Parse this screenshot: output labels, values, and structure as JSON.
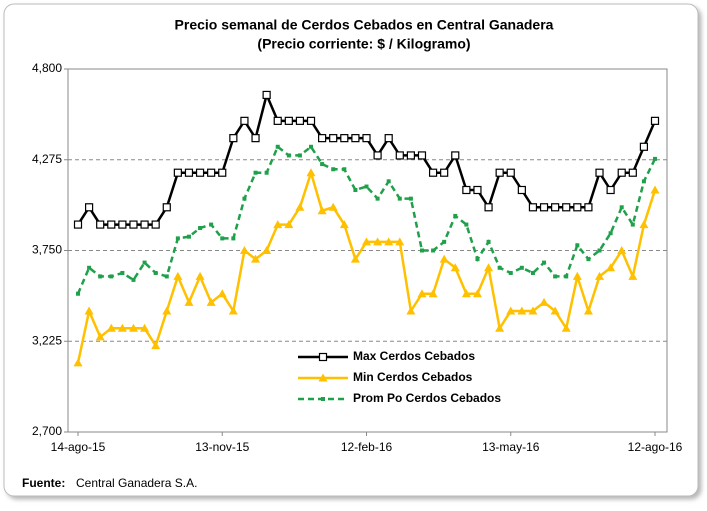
{
  "chart_data": {
    "type": "line",
    "title": "Precio semanal de Cerdos Cebados en Central Ganadera",
    "subtitle": "(Precio corriente: $ / Kilogramo)",
    "categories": [
      "14-ago-15",
      null,
      null,
      null,
      null,
      null,
      null,
      null,
      null,
      null,
      null,
      null,
      null,
      "13-nov-15",
      null,
      null,
      null,
      null,
      null,
      null,
      null,
      null,
      null,
      null,
      null,
      null,
      "12-feb-16",
      null,
      null,
      null,
      null,
      null,
      null,
      null,
      null,
      null,
      null,
      null,
      null,
      "13-may-16",
      null,
      null,
      null,
      null,
      null,
      null,
      null,
      null,
      null,
      null,
      null,
      null,
      "12-ago-16"
    ],
    "series": [
      {
        "name": "Max Cerdos Cebados",
        "color": "#000000",
        "marker": "square-open",
        "values": [
          3900,
          4000,
          3900,
          3900,
          3900,
          3900,
          3900,
          3900,
          4000,
          4200,
          4200,
          4200,
          4200,
          4200,
          4400,
          4500,
          4400,
          4650,
          4500,
          4500,
          4500,
          4500,
          4400,
          4400,
          4400,
          4400,
          4400,
          4300,
          4400,
          4300,
          4300,
          4300,
          4200,
          4200,
          4300,
          4100,
          4100,
          4000,
          4200,
          4200,
          4100,
          4000,
          4000,
          4000,
          4000,
          4000,
          4000,
          4200,
          4100,
          4200,
          4200,
          4350,
          4500
        ]
      },
      {
        "name": "Min Cerdos Cebados",
        "color": "#ffc000",
        "marker": "triangle",
        "values": [
          3100,
          3400,
          3250,
          3300,
          3300,
          3300,
          3300,
          3200,
          3400,
          3600,
          3450,
          3600,
          3450,
          3500,
          3400,
          3750,
          3700,
          3750,
          3900,
          3900,
          4000,
          4200,
          3980,
          4000,
          3900,
          3700,
          3800,
          3800,
          3800,
          3800,
          3400,
          3500,
          3500,
          3700,
          3650,
          3500,
          3500,
          3650,
          3300,
          3400,
          3400,
          3400,
          3450,
          3400,
          3300,
          3600,
          3400,
          3600,
          3650,
          3750,
          3600,
          3900,
          4100
        ]
      },
      {
        "name": "Prom Po Cerdos Cebados",
        "color": "#1fa04a",
        "marker": "small-square",
        "dashed": true,
        "values": [
          3500,
          3650,
          3600,
          3600,
          3620,
          3580,
          3680,
          3620,
          3600,
          3820,
          3830,
          3880,
          3900,
          3820,
          3820,
          4050,
          4200,
          4200,
          4350,
          4300,
          4300,
          4350,
          4250,
          4220,
          4220,
          4100,
          4120,
          4050,
          4150,
          4050,
          4050,
          3750,
          3750,
          3800,
          3950,
          3900,
          3700,
          3800,
          3650,
          3620,
          3650,
          3620,
          3680,
          3600,
          3600,
          3780,
          3700,
          3750,
          3850,
          4000,
          3900,
          4150,
          4280
        ]
      }
    ],
    "ylim": [
      2700,
      4800
    ],
    "yticks": [
      {
        "value": 2700,
        "label": "2,700"
      },
      {
        "value": 3225,
        "label": "3,225"
      },
      {
        "value": 3750,
        "label": "3,750"
      },
      {
        "value": 4275,
        "label": "4,275"
      },
      {
        "value": 4800,
        "label": "4,800"
      }
    ],
    "grid": true
  },
  "footer": {
    "source_label": "Fuente:",
    "source_text": "Central Ganadera S.A."
  }
}
